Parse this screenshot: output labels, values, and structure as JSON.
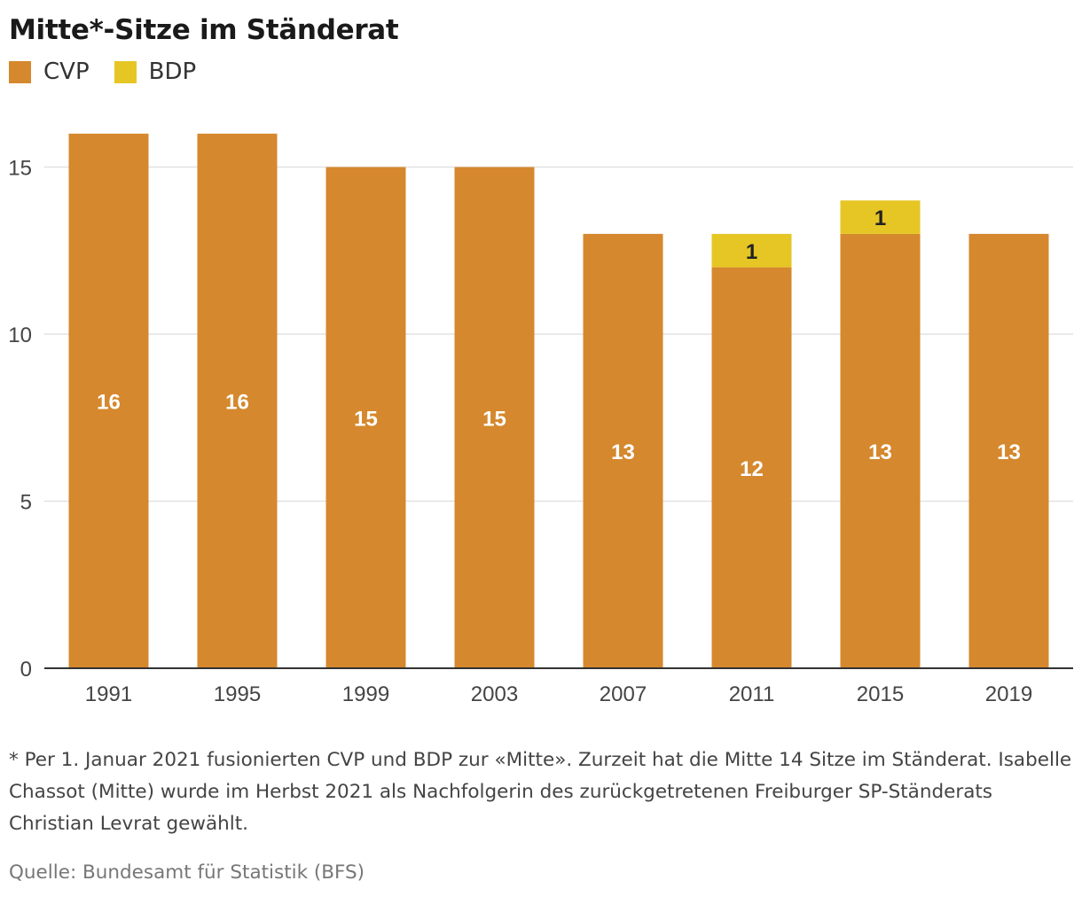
{
  "title": "Mitte*-Sitze im Ständerat",
  "legend": [
    {
      "label": "CVP",
      "color": "#d5882d"
    },
    {
      "label": "BDP",
      "color": "#e6c624"
    }
  ],
  "chart_data": {
    "type": "bar",
    "stacked": true,
    "categories": [
      "1991",
      "1995",
      "1999",
      "2003",
      "2007",
      "2011",
      "2015",
      "2019"
    ],
    "series": [
      {
        "name": "CVP",
        "color": "#d5882d",
        "values": [
          16,
          16,
          15,
          15,
          13,
          12,
          13,
          13
        ]
      },
      {
        "name": "BDP",
        "color": "#e6c624",
        "values": [
          0,
          0,
          0,
          0,
          0,
          1,
          1,
          0
        ]
      }
    ],
    "ylim": [
      0,
      16
    ],
    "yticks": [
      0,
      5,
      10,
      15
    ],
    "grid": true,
    "legend_position": "top-left"
  },
  "footnote": "* Per 1. Januar 2021 fusionierten CVP und BDP zur «Mitte». Zurzeit hat die Mitte 14 Sitze im Ständerat. Isabelle Chassot (Mitte) wurde im Herbst 2021 als Nachfolgerin des zurückgetretenen Freiburger SP-Ständerats Christian Levrat gewählt.",
  "source": "Quelle: Bundesamt für Statistik (BFS)"
}
